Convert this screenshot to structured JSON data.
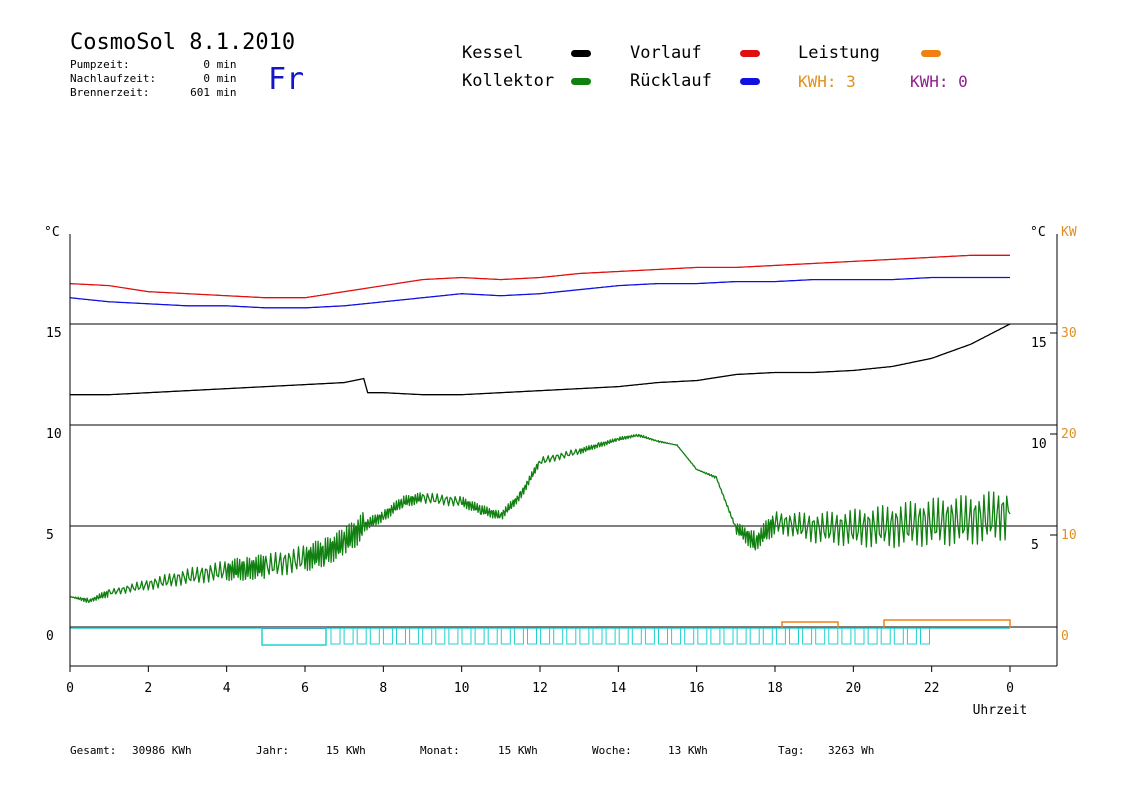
{
  "header": {
    "title": "CosmoSol 8.1.2010",
    "day": "Fr",
    "stats": [
      {
        "label": "Pumpzeit:",
        "value": "0",
        "unit": "min"
      },
      {
        "label": "Nachlaufzeit:",
        "value": "0",
        "unit": "min"
      },
      {
        "label": "Brennerzeit:",
        "value": "601",
        "unit": "min"
      }
    ]
  },
  "legend": {
    "kessel": {
      "label": "Kessel",
      "color": "#000000"
    },
    "vorlauf": {
      "label": "Vorlauf",
      "color": "#e01010"
    },
    "leistung": {
      "label": "Leistung",
      "color": "#f08010"
    },
    "kollektor": {
      "label": "Kollektor",
      "color": "#108010"
    },
    "ruecklauf": {
      "label": "Rücklauf",
      "color": "#1010e0"
    },
    "kwh1": {
      "label": "KWH: 3",
      "color": "#e09020"
    },
    "kwh2": {
      "label": "KWH: 0",
      "color": "#902090"
    }
  },
  "chart_data": [
    {
      "type": "line",
      "title": "",
      "xlabel": "Uhrzeit",
      "x_ticks": [
        "0",
        "2",
        "4",
        "6",
        "8",
        "10",
        "12",
        "14",
        "16",
        "18",
        "20",
        "22",
        "0"
      ],
      "left_unit": "°C",
      "left_ticks": [
        "0",
        "5",
        "10",
        "15"
      ],
      "right_unit": "°C",
      "right_ticks": [
        "5",
        "10",
        "15"
      ],
      "xlim": [
        0,
        24
      ],
      "series": [
        {
          "name": "Vorlauf",
          "color": "#e01010",
          "x": [
            0,
            1,
            2,
            3,
            4,
            5,
            6,
            7,
            8,
            9,
            10,
            11,
            12,
            13,
            14,
            15,
            16,
            17,
            18,
            19,
            20,
            21,
            22,
            23,
            24
          ],
          "y": [
            17.0,
            16.9,
            16.6,
            16.5,
            16.4,
            16.3,
            16.3,
            16.6,
            16.9,
            17.2,
            17.3,
            17.2,
            17.3,
            17.5,
            17.6,
            17.7,
            17.8,
            17.8,
            17.9,
            18.0,
            18.1,
            18.2,
            18.3,
            18.4,
            18.4
          ]
        },
        {
          "name": "Rücklauf",
          "color": "#1010e0",
          "x": [
            0,
            1,
            2,
            3,
            4,
            5,
            6,
            7,
            8,
            9,
            10,
            11,
            12,
            13,
            14,
            15,
            16,
            17,
            18,
            19,
            20,
            21,
            22,
            23,
            24
          ],
          "y": [
            16.3,
            16.1,
            16.0,
            15.9,
            15.9,
            15.8,
            15.8,
            15.9,
            16.1,
            16.3,
            16.5,
            16.4,
            16.5,
            16.7,
            16.9,
            17.0,
            17.0,
            17.1,
            17.1,
            17.2,
            17.2,
            17.2,
            17.3,
            17.3,
            17.3
          ]
        },
        {
          "name": "Kessel",
          "color": "#000000",
          "x": [
            0,
            1,
            2,
            3,
            4,
            5,
            6,
            7,
            7.5,
            7.6,
            8,
            9,
            9.5,
            10,
            11,
            12,
            13,
            14,
            15,
            16,
            17,
            18,
            19,
            20,
            21,
            22,
            23,
            23.5,
            24
          ],
          "y": [
            11.5,
            11.5,
            11.6,
            11.7,
            11.8,
            11.9,
            12.0,
            12.1,
            12.3,
            11.6,
            11.6,
            11.5,
            11.5,
            11.5,
            11.6,
            11.7,
            11.8,
            11.9,
            12.1,
            12.2,
            12.5,
            12.6,
            12.6,
            12.7,
            12.9,
            13.3,
            14.0,
            14.5,
            15.0
          ]
        },
        {
          "name": "Kollektor",
          "color": "#108010",
          "x": [
            0,
            0.5,
            1,
            2,
            3,
            4,
            4.5,
            5,
            6,
            6.5,
            7,
            7.5,
            8,
            8.5,
            9,
            10,
            10.5,
            11,
            11.5,
            12,
            13,
            13.5,
            14,
            14.5,
            15,
            15.5,
            16,
            16.5,
            17,
            17.5,
            18,
            19,
            20,
            21,
            22,
            23,
            24
          ],
          "y": [
            1.5,
            1.3,
            1.7,
            2.1,
            2.5,
            2.8,
            2.9,
            3.0,
            3.4,
            3.7,
            4.2,
            5.0,
            5.5,
            6.2,
            6.4,
            6.2,
            5.8,
            5.5,
            6.5,
            8.2,
            8.7,
            9.0,
            9.3,
            9.5,
            9.2,
            9.0,
            7.8,
            7.4,
            4.9,
            4.2,
            5.2,
            4.9,
            4.9,
            5.0,
            5.2,
            5.3,
            5.6
          ]
        }
      ]
    }
  ],
  "footer": [
    {
      "label": "Gesamt:",
      "value": "30986 KWh"
    },
    {
      "label": "Jahr:",
      "value": "15 KWh"
    },
    {
      "label": "Monat:",
      "value": "15 KWh"
    },
    {
      "label": "Woche:",
      "value": "13 KWh"
    },
    {
      "label": "Tag:",
      "value": "3263 Wh"
    }
  ]
}
